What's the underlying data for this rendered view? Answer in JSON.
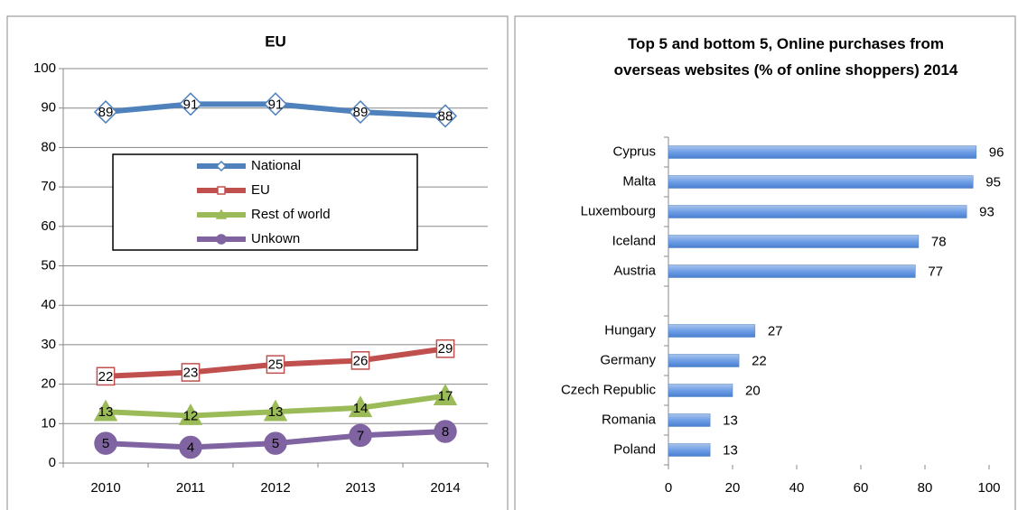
{
  "chart_data": [
    {
      "type": "line",
      "title": "EU",
      "categories": [
        "2010",
        "2011",
        "2012",
        "2013",
        "2014"
      ],
      "series": [
        {
          "name": "National",
          "color": "#4f81bd",
          "marker": "diamond",
          "marker_fill": "#ffffff",
          "values": [
            89,
            91,
            91,
            89,
            88
          ]
        },
        {
          "name": "EU",
          "color": "#c0504d",
          "marker": "square",
          "marker_fill": "#ffffff",
          "values": [
            22,
            23,
            25,
            26,
            29
          ]
        },
        {
          "name": "Rest of world",
          "color": "#9bbb59",
          "marker": "triangle",
          "marker_fill": "#9bbb59",
          "values": [
            13,
            12,
            13,
            14,
            17
          ]
        },
        {
          "name": "Unkown",
          "color": "#8064a2",
          "marker": "circle",
          "marker_fill": "#8064a2",
          "values": [
            5,
            4,
            5,
            7,
            8
          ]
        }
      ],
      "ylim": [
        0,
        100
      ],
      "yticks": [
        0,
        10,
        20,
        30,
        40,
        50,
        60,
        70,
        80,
        90,
        100
      ],
      "grid": true,
      "legend": "center"
    },
    {
      "type": "barh",
      "title": "Top 5 and bottom 5, Online purchases from overseas websites (% of online shoppers) 2014",
      "categories": [
        "Cyprus",
        "Malta",
        "Luxembourg",
        "Iceland",
        "Austria",
        null,
        "Hungary",
        "Germany",
        "Czech Republic",
        "Romania",
        "Poland"
      ],
      "values": [
        96,
        95,
        93,
        78,
        77,
        null,
        27,
        22,
        20,
        13,
        13
      ],
      "color": "#4f81bd",
      "xlim": [
        0,
        100
      ],
      "xticks": [
        0,
        20,
        40,
        60,
        80,
        100
      ],
      "grid": false
    }
  ]
}
